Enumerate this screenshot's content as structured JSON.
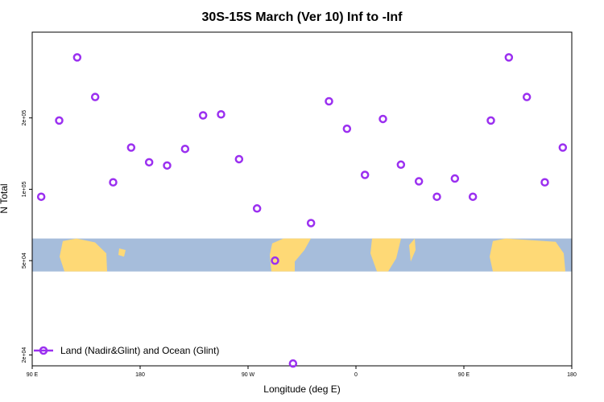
{
  "chart_data": {
    "type": "scatter",
    "title": "30S-15S March (Ver 10)   Inf to -Inf",
    "xlabel": "Longitude (deg E)",
    "ylabel": "N Total",
    "x_ticks": [
      {
        "value": 90,
        "label": "90 E"
      },
      {
        "value": 180,
        "label": "180"
      },
      {
        "value": 270,
        "label": "90 W"
      },
      {
        "value": 360,
        "label": "0"
      },
      {
        "value": 450,
        "label": "90 E"
      },
      {
        "value": 540,
        "label": "180"
      }
    ],
    "y_ticks": [
      {
        "value": 20000,
        "label": "2e+04"
      },
      {
        "value": 50000,
        "label": "5e+04"
      },
      {
        "value": 100000,
        "label": "1e+05"
      },
      {
        "value": 200000,
        "label": "2e+05"
      }
    ],
    "xlim": [
      90,
      540
    ],
    "ylim": [
      18000,
      460000
    ],
    "y_scale": "log",
    "grid": false,
    "legend_position": "bottom-left",
    "legend": [
      {
        "label": "Land (Nadir&Glint) and Ocean (Glint)",
        "color": "#9b30f0"
      }
    ],
    "map_band": {
      "description": "latitude band map strip (ocean and land)",
      "y_range": [
        45000,
        62000
      ],
      "ocean_color": "#a6bddb",
      "land_color": "#fed976"
    },
    "series": [
      {
        "name": "Land (Nadir&Glint) and Ocean (Glint)",
        "color": "#9b30f0",
        "x": [
          97.5,
          112.5,
          127.5,
          142.5,
          157.5,
          172.5,
          187.5,
          202.5,
          217.5,
          232.5,
          247.5,
          262.5,
          277.5,
          292.5,
          307.5,
          322.5,
          337.5,
          352.5,
          367.5,
          382.5,
          397.5,
          412.5,
          427.5,
          442.5,
          457.5,
          472.5,
          487.5,
          502.5,
          517.5,
          532.5
        ],
        "y": [
          93000,
          195000,
          360000,
          245000,
          107000,
          150000,
          130000,
          126000,
          148000,
          205000,
          207000,
          134000,
          83000,
          50000,
          18400,
          72000,
          235000,
          180000,
          115000,
          198000,
          127000,
          108000,
          93000,
          111000,
          93000,
          195000,
          360000,
          245000,
          107000,
          150000
        ]
      }
    ]
  }
}
